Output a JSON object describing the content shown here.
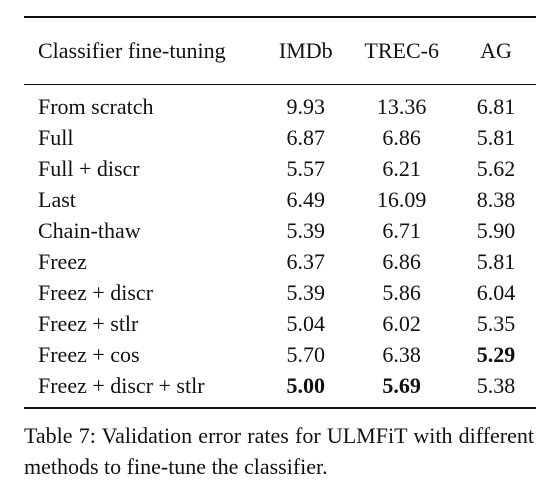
{
  "table": {
    "headers": [
      "Classifier fine-tuning",
      "IMDb",
      "TREC-6",
      "AG"
    ],
    "rows": [
      {
        "method": "From scratch",
        "imdb": "9.93",
        "trec": "13.36",
        "ag": "6.81"
      },
      {
        "method": "Full",
        "imdb": "6.87",
        "trec": "6.86",
        "ag": "5.81"
      },
      {
        "method": "Full + discr",
        "imdb": "5.57",
        "trec": "6.21",
        "ag": "5.62"
      },
      {
        "method": "Last",
        "imdb": "6.49",
        "trec": "16.09",
        "ag": "8.38"
      },
      {
        "method": "Chain-thaw",
        "imdb": "5.39",
        "trec": "6.71",
        "ag": "5.90"
      },
      {
        "method": "Freez",
        "imdb": "6.37",
        "trec": "6.86",
        "ag": "5.81"
      },
      {
        "method": "Freez + discr",
        "imdb": "5.39",
        "trec": "5.86",
        "ag": "6.04"
      },
      {
        "method": "Freez + stlr",
        "imdb": "5.04",
        "trec": "6.02",
        "ag": "5.35"
      },
      {
        "method": "Freez + cos",
        "imdb": "5.70",
        "trec": "6.38",
        "ag": "5.29"
      },
      {
        "method": "Freez + discr + stlr",
        "imdb": "5.00",
        "trec": "5.69",
        "ag": "5.38"
      }
    ],
    "bold_cells": [
      "8.ag",
      "9.imdb",
      "9.trec"
    ]
  },
  "caption": "Table 7: Validation error rates for ULMFiT with different methods to fine-tune the classifier."
}
